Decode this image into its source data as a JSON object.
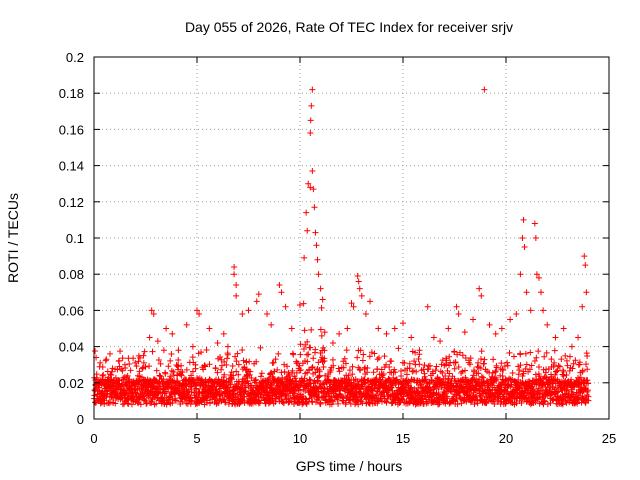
{
  "chart_data": {
    "type": "scatter",
    "title": "Day 055 of 2026, Rate Of TEC Index for receiver srjv",
    "xlabel": "GPS time / hours",
    "ylabel": "ROTI / TECUs",
    "xlim": [
      0,
      25
    ],
    "ylim": [
      0,
      0.2
    ],
    "xticks": [
      0,
      5,
      10,
      15,
      20,
      25
    ],
    "xtick_labels": [
      "0",
      "5",
      "10",
      "15",
      "20",
      "25"
    ],
    "yticks": [
      0,
      0.02,
      0.04,
      0.06,
      0.08,
      0.1,
      0.12,
      0.14,
      0.16,
      0.18,
      0.2
    ],
    "ytick_labels": [
      "0",
      "0.02",
      "0.04",
      "0.06",
      "0.08",
      "0.1",
      "0.12",
      "0.14",
      "0.16",
      "0.18",
      "0.2"
    ],
    "grid": true,
    "marker": "plus",
    "color": "#ff0000",
    "series": [
      {
        "name": "ROTI",
        "points": [
          [
            0.1,
            0.034
          ],
          [
            0.3,
            0.031
          ],
          [
            0.6,
            0.033
          ],
          [
            0.9,
            0.028
          ],
          [
            1.2,
            0.032
          ],
          [
            1.5,
            0.03
          ],
          [
            2.0,
            0.031
          ],
          [
            2.4,
            0.035
          ],
          [
            2.7,
            0.045
          ],
          [
            2.8,
            0.06
          ],
          [
            2.9,
            0.058
          ],
          [
            3.1,
            0.043
          ],
          [
            3.5,
            0.05
          ],
          [
            3.8,
            0.047
          ],
          [
            4.1,
            0.038
          ],
          [
            4.5,
            0.052
          ],
          [
            4.8,
            0.04
          ],
          [
            5.0,
            0.06
          ],
          [
            5.1,
            0.058
          ],
          [
            5.6,
            0.05
          ],
          [
            6.0,
            0.042
          ],
          [
            6.3,
            0.047
          ],
          [
            6.5,
            0.04
          ],
          [
            6.8,
            0.084
          ],
          [
            6.8,
            0.08
          ],
          [
            6.9,
            0.074
          ],
          [
            6.9,
            0.068
          ],
          [
            7.2,
            0.058
          ],
          [
            7.5,
            0.06
          ],
          [
            7.9,
            0.065
          ],
          [
            8.0,
            0.069
          ],
          [
            8.4,
            0.058
          ],
          [
            8.6,
            0.052
          ],
          [
            9.0,
            0.074
          ],
          [
            9.1,
            0.07
          ],
          [
            9.3,
            0.062
          ],
          [
            9.6,
            0.05
          ],
          [
            10.0,
            0.063
          ],
          [
            10.2,
            0.089
          ],
          [
            10.3,
            0.114
          ],
          [
            10.35,
            0.104
          ],
          [
            10.4,
            0.13
          ],
          [
            10.5,
            0.128
          ],
          [
            10.5,
            0.158
          ],
          [
            10.52,
            0.165
          ],
          [
            10.55,
            0.173
          ],
          [
            10.6,
            0.182
          ],
          [
            10.6,
            0.137
          ],
          [
            10.65,
            0.127
          ],
          [
            10.7,
            0.117
          ],
          [
            10.75,
            0.103
          ],
          [
            10.8,
            0.096
          ],
          [
            10.85,
            0.088
          ],
          [
            10.9,
            0.08
          ],
          [
            11.0,
            0.072
          ],
          [
            11.1,
            0.066
          ],
          [
            11.2,
            0.048
          ],
          [
            11.6,
            0.042
          ],
          [
            11.9,
            0.047
          ],
          [
            12.3,
            0.05
          ],
          [
            12.5,
            0.064
          ],
          [
            12.6,
            0.062
          ],
          [
            12.8,
            0.079
          ],
          [
            12.85,
            0.076
          ],
          [
            12.9,
            0.072
          ],
          [
            13.0,
            0.068
          ],
          [
            13.2,
            0.058
          ],
          [
            13.4,
            0.065
          ],
          [
            13.8,
            0.05
          ],
          [
            14.2,
            0.047
          ],
          [
            14.6,
            0.05
          ],
          [
            15.0,
            0.053
          ],
          [
            15.4,
            0.045
          ],
          [
            15.8,
            0.038
          ],
          [
            16.2,
            0.062
          ],
          [
            16.5,
            0.045
          ],
          [
            16.8,
            0.043
          ],
          [
            17.2,
            0.05
          ],
          [
            17.6,
            0.062
          ],
          [
            17.7,
            0.058
          ],
          [
            18.0,
            0.048
          ],
          [
            18.4,
            0.055
          ],
          [
            18.7,
            0.072
          ],
          [
            18.8,
            0.068
          ],
          [
            18.95,
            0.182
          ],
          [
            19.2,
            0.052
          ],
          [
            19.5,
            0.047
          ],
          [
            19.8,
            0.05
          ],
          [
            20.2,
            0.055
          ],
          [
            20.5,
            0.058
          ],
          [
            20.7,
            0.08
          ],
          [
            20.8,
            0.1
          ],
          [
            20.85,
            0.11
          ],
          [
            20.9,
            0.095
          ],
          [
            21.0,
            0.07
          ],
          [
            21.2,
            0.06
          ],
          [
            21.4,
            0.108
          ],
          [
            21.45,
            0.1
          ],
          [
            21.5,
            0.08
          ],
          [
            21.6,
            0.078
          ],
          [
            21.7,
            0.07
          ],
          [
            21.8,
            0.06
          ],
          [
            22.0,
            0.052
          ],
          [
            22.4,
            0.045
          ],
          [
            22.8,
            0.05
          ],
          [
            23.2,
            0.04
          ],
          [
            23.5,
            0.045
          ],
          [
            23.7,
            0.062
          ],
          [
            23.8,
            0.09
          ],
          [
            23.85,
            0.085
          ],
          [
            23.9,
            0.07
          ]
        ]
      }
    ]
  }
}
